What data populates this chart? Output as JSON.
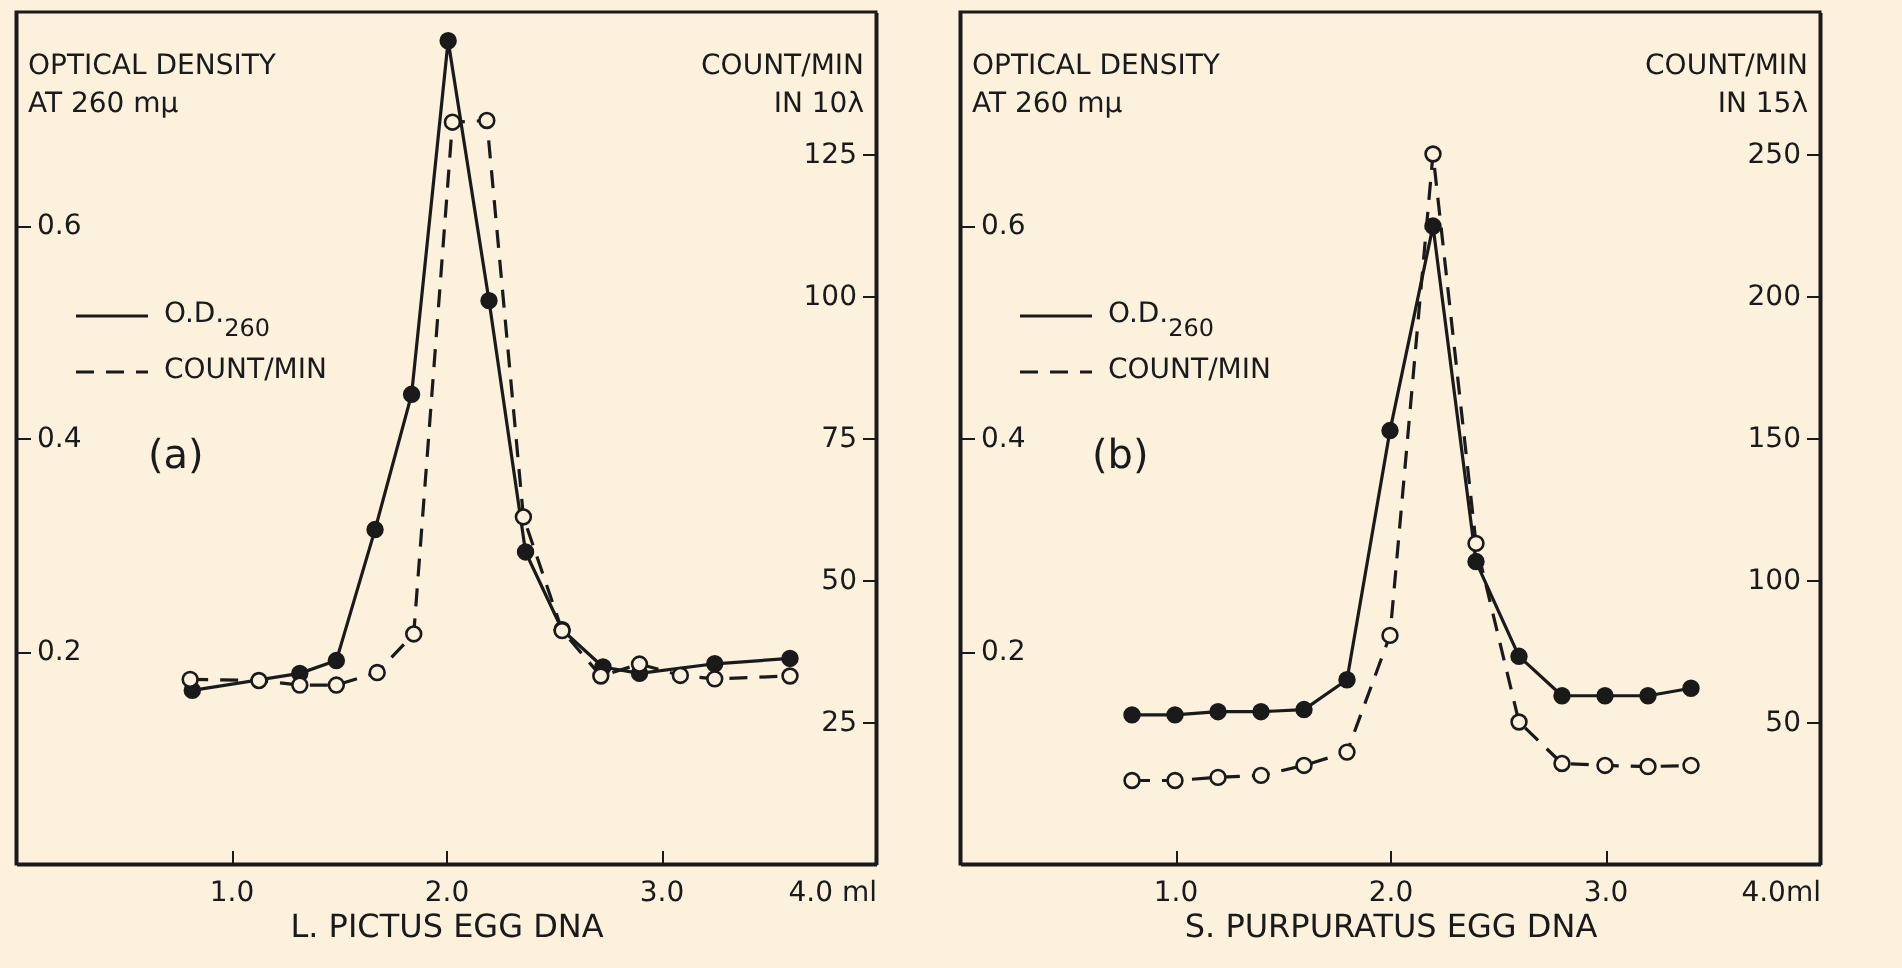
{
  "chart_data": [
    {
      "type": "line",
      "xlabel": "L. PICTUS EGG DNA",
      "ylabel": "OPTICAL DENSITY\nAT 260 mμ",
      "y2label": "COUNT/MIN\nIN 10λ",
      "annotations": [
        "(a)"
      ],
      "legend": "top left",
      "marker": "circle",
      "grid": false,
      "xlim": [
        0,
        4
      ],
      "xticks": [
        {
          "value": 1,
          "label": "1.0"
        },
        {
          "value": 2,
          "label": "2.0"
        },
        {
          "value": 3,
          "label": "3.0"
        },
        {
          "value": 4,
          "label": "4.0 ml"
        }
      ],
      "ylim": [
        0,
        0.8
      ],
      "yticks": [
        0.2,
        0.4,
        0.6
      ],
      "y2lim": [
        0,
        150
      ],
      "y2ticks": [
        25,
        50,
        75,
        100,
        125
      ],
      "series": [
        {
          "name": "O.D.$_{260}$",
          "color": "#1a1a1a",
          "line_style": "solid",
          "x": [
            0.82,
            1.32,
            1.49,
            1.67,
            1.84,
            2.01,
            2.2,
            2.37,
            2.54,
            2.73,
            2.9,
            3.25,
            3.6
          ],
          "values": [
            0.163,
            0.179,
            0.191,
            0.314,
            0.441,
            0.773,
            0.529,
            0.293,
            0.22,
            0.185,
            0.179,
            0.188,
            0.193
          ]
        },
        {
          "name": "COUNT/MIN",
          "color": "#1a1a1a",
          "line_style": "dashed",
          "axis": "y2",
          "x": [
            0.81,
            1.13,
            1.32,
            1.49,
            1.68,
            1.85,
            2.03,
            2.19,
            2.36,
            2.54,
            2.72,
            2.9,
            3.09,
            3.25,
            3.6
          ],
          "values": [
            32.5,
            32.3,
            31.5,
            31.5,
            33.7,
            40.5,
            130.6,
            130.9,
            61.1,
            41.1,
            33.1,
            35.2,
            33.2,
            32.6,
            33.1
          ]
        }
      ]
    },
    {
      "type": "line",
      "xlabel": "S. PURPURATUS EGG DNA",
      "ylabel": "OPTICAL DENSITY\nAT 260 mμ",
      "y2label": "COUNT/MIN\nIN 15λ",
      "annotations": [
        "(b)"
      ],
      "legend": "top left",
      "marker": "circle",
      "grid": false,
      "xlim": [
        0,
        4
      ],
      "xticks": [
        {
          "value": 1,
          "label": "1.0"
        },
        {
          "value": 2,
          "label": "2.0"
        },
        {
          "value": 3,
          "label": "3.0"
        },
        {
          "value": 4,
          "label": "4.0ml"
        }
      ],
      "ylim": [
        0,
        0.8
      ],
      "yticks": [
        0.2,
        0.4,
        0.6
      ],
      "y2lim": [
        0,
        300
      ],
      "y2ticks": [
        50,
        100,
        150,
        200,
        250
      ],
      "series": [
        {
          "name": "O.D.$_{260}$",
          "color": "#1a1a1a",
          "line_style": "solid",
          "x": [
            0.8,
            1.0,
            1.2,
            1.4,
            1.6,
            1.8,
            2.0,
            2.2,
            2.4,
            2.6,
            2.8,
            3.0,
            3.2,
            3.4
          ],
          "values": [
            0.14,
            0.14,
            0.143,
            0.143,
            0.145,
            0.173,
            0.407,
            0.599,
            0.284,
            0.195,
            0.158,
            0.158,
            0.158,
            0.165
          ]
        },
        {
          "name": "COUNT/MIN",
          "color": "#1a1a1a",
          "line_style": "dashed",
          "axis": "y2",
          "x": [
            0.8,
            1.0,
            1.2,
            1.4,
            1.6,
            1.8,
            2.0,
            2.2,
            2.4,
            2.6,
            2.8,
            3.0,
            3.2,
            3.4
          ],
          "values": [
            29.4,
            29.4,
            30.5,
            31.2,
            34.7,
            39.4,
            80.5,
            250,
            112.9,
            50,
            35.4,
            34.7,
            34.3,
            34.7
          ]
        }
      ]
    }
  ]
}
